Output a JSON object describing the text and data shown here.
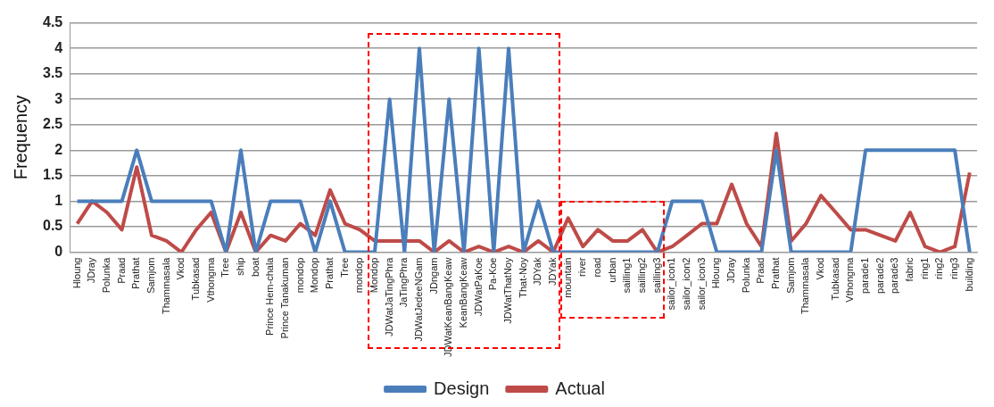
{
  "chart_data": {
    "type": "line",
    "ylabel": "Frequency",
    "categories": [
      "Hloung",
      "JDray",
      "Polunka",
      "Praad",
      "Prathat",
      "Samjom",
      "Thammasala",
      "Vkod",
      "Tubkasad",
      "Vthongma",
      "Tree",
      "ship",
      "boat",
      "Prince Hem-chala",
      "Prince Tanakuman",
      "mondop",
      "Mondop",
      "Prathat",
      "Tree",
      "mondop",
      "Mondop",
      "JDWatJaTingPhra",
      "JaTingPhra",
      "JDWatJedeeNGam",
      "JDngam",
      "JDWatKeanBangKeaw",
      "KeanBangKeaw",
      "JDWatPaKoe",
      "Pa-Koe",
      "JDWatThatNoy",
      "That-Noy",
      "JDYak",
      "JDYak",
      "mountain",
      "river",
      "road",
      "urban",
      "sailling1",
      "sailling2",
      "sailling3",
      "sailor_icon1",
      "sailor_icon2",
      "sailor_icon3",
      "Hloung",
      "JDray",
      "Polunka",
      "Praad",
      "Prathat",
      "Samjom",
      "Thammasala",
      "Vkod",
      "Tubkasad",
      "Vthongma",
      "parade1",
      "parade2",
      "parade3",
      "fabric",
      "ring1",
      "ring2",
      "ring3",
      "building"
    ],
    "series": [
      {
        "name": "Design",
        "color": "#4a7ebb",
        "values": [
          1,
          1,
          1,
          1,
          2,
          1,
          1,
          1,
          1,
          1,
          0,
          2,
          0,
          1,
          1,
          1,
          0,
          1,
          0,
          0,
          0,
          3,
          0,
          4,
          0,
          3,
          0,
          4,
          0,
          4,
          0,
          1,
          0,
          0,
          0,
          0,
          0,
          0,
          0,
          0,
          1,
          1,
          1,
          0,
          0,
          0,
          0,
          2,
          0,
          0,
          0,
          0,
          0,
          2,
          2,
          2,
          2,
          2,
          2,
          2,
          0
        ]
      },
      {
        "name": "Actual",
        "color": "#be4b48",
        "values": [
          0.56,
          1,
          0.78,
          0.44,
          1.67,
          0.33,
          0.22,
          0,
          0.44,
          0.78,
          0,
          0.78,
          0,
          0.33,
          0.22,
          0.56,
          0.33,
          1.22,
          0.56,
          0.44,
          0.22,
          0.22,
          0.22,
          0.22,
          0,
          0.22,
          0,
          0.11,
          0,
          0.11,
          0,
          0.22,
          0,
          0.67,
          0.11,
          0.44,
          0.22,
          0.22,
          0.44,
          0,
          0.11,
          0.33,
          0.56,
          0.56,
          1.33,
          0.56,
          0.11,
          2.33,
          0.22,
          0.56,
          1.11,
          0.78,
          0.44,
          0.44,
          0.33,
          0.22,
          0.78,
          0.11,
          0,
          0.11,
          1.56
        ]
      }
    ],
    "ylim": [
      0,
      4.5
    ],
    "yticks": [
      0,
      0.5,
      1,
      1.5,
      2,
      2.5,
      3,
      3.5,
      4,
      4.5
    ],
    "grid": "y",
    "legend": "bottom",
    "marker": "none",
    "line_style": "solid"
  }
}
